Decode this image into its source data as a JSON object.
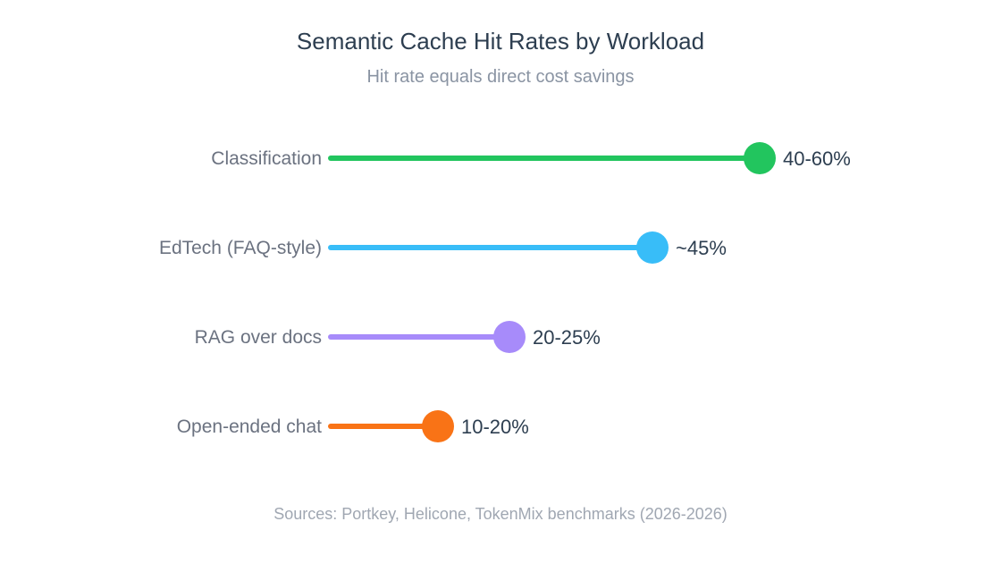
{
  "chart_data": {
    "type": "lollipop",
    "title": "Semantic Cache Hit Rates by Workload",
    "subtitle": "Hit rate equals direct cost savings",
    "source": "Sources: Portkey, Helicone, TokenMix benchmarks (2026-2026)",
    "xlim": [
      0,
      60
    ],
    "grid": false,
    "categories": [
      "Classification",
      "EdTech (FAQ-style)",
      "RAG over docs",
      "Open-ended chat"
    ],
    "values": [
      60,
      45,
      25,
      15
    ],
    "value_labels": [
      "40-60%",
      "~45%",
      "20-25%",
      "10-20%"
    ],
    "colors": [
      "#22c55e",
      "#38bdf8",
      "#a78bfa",
      "#f97316"
    ]
  }
}
